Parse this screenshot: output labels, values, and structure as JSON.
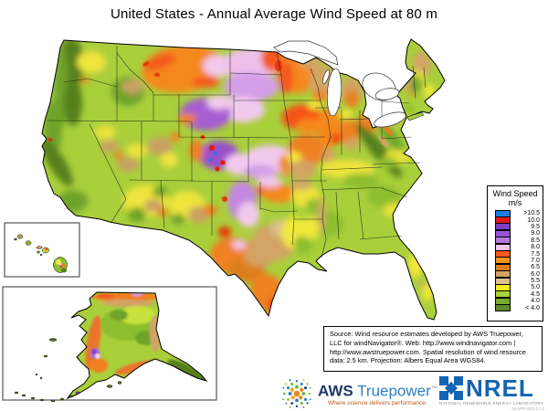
{
  "title": "United States - Annual Average Wind Speed at 80 m",
  "legend": {
    "title_line1": "Wind Speed",
    "title_line2": "m/s",
    "entries": [
      {
        "label": ">10.5",
        "color": "#1E7BE4"
      },
      {
        "label": "10.0",
        "color": "#EA1217"
      },
      {
        "label": "9.5",
        "color": "#7A3FC6"
      },
      {
        "label": "9.0",
        "color": "#9955D2"
      },
      {
        "label": "8.5",
        "color": "#B678DF"
      },
      {
        "label": "8.0",
        "color": "#F1C7F1"
      },
      {
        "label": "7.5",
        "color": "#F4581D"
      },
      {
        "label": "7.0",
        "color": "#F7941E"
      },
      {
        "label": "6.5",
        "color": "#DB7D1E"
      },
      {
        "label": "6.0",
        "color": "#D2A365"
      },
      {
        "label": "5.5",
        "color": "#DFC08F"
      },
      {
        "label": "5.0",
        "color": "#F8EC20"
      },
      {
        "label": "4.5",
        "color": "#A6D437"
      },
      {
        "label": "4.0",
        "color": "#78AC2C"
      },
      {
        "label": "< 4.0",
        "color": "#5E8A28"
      }
    ]
  },
  "source_box": {
    "text": "Source: Wind resource estimates developed by AWS Truepower, LLC for windNavigator®. Web: http://www.windnavigator.com | http://www.awstruepower.com. Spatial resolution of wind resource data: 2.5 km. Projection: Albers Equal Area WGS84."
  },
  "logos": {
    "aws": {
      "name_bold": "AWS",
      "name_light": " Truepower",
      "trademark": "™",
      "tagline": "Where science delivers performance."
    },
    "nrel": {
      "acronym": "NREL",
      "full_name": "NATIONAL RENEWABLE ENERGY LABORATORY",
      "stamp": "04-APR-2011 2.1.1"
    }
  }
}
